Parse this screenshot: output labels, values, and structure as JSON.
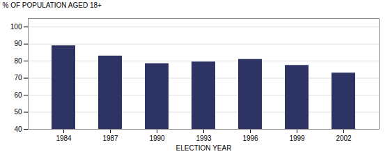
{
  "chart_data": {
    "type": "bar",
    "categories": [
      "1984",
      "1987",
      "1990",
      "1993",
      "1996",
      "1999",
      "2002"
    ],
    "values": [
      89,
      83,
      78.5,
      79.5,
      81,
      77.5,
      73
    ],
    "color": "#2d3464",
    "xlabel": "ELECTION YEAR",
    "ylabel": "% OF POPULATION AGED 18+",
    "ylim": [
      40,
      105
    ],
    "yticks": [
      40,
      50,
      60,
      70,
      80,
      90,
      100
    ],
    "grid": true
  }
}
